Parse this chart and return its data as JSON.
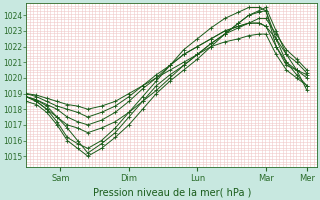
{
  "bg_color": "#c8e8e0",
  "plot_bg": "#ffffff",
  "grid_color": "#f0c8c8",
  "line_color": "#1a5c1a",
  "xlabel": "Pression niveau de la mer( hPa )",
  "ylim": [
    1014.3,
    1024.8
  ],
  "yticks": [
    1015,
    1016,
    1017,
    1018,
    1019,
    1020,
    1021,
    1022,
    1023,
    1024
  ],
  "xlim": [
    0,
    8.5
  ],
  "tick_positions": [
    1.0,
    3.0,
    5.0,
    7.0,
    8.2
  ],
  "tick_labels": [
    "Sam",
    "Dim",
    "Lun",
    "Mar",
    "Mer"
  ],
  "lines": [
    {
      "x": [
        0.0,
        0.3,
        0.6,
        0.9,
        1.2,
        1.5,
        1.8,
        2.2,
        2.6,
        3.0,
        3.4,
        3.8,
        4.2,
        4.6,
        5.0,
        5.4,
        5.8,
        6.2,
        6.5,
        6.8,
        7.0,
        7.3,
        7.6,
        7.9,
        8.2
      ],
      "y": [
        1018.8,
        1018.6,
        1018.2,
        1017.5,
        1016.8,
        1016.0,
        1015.2,
        1015.8,
        1016.5,
        1017.5,
        1018.5,
        1019.5,
        1020.2,
        1020.8,
        1021.5,
        1022.2,
        1022.8,
        1023.5,
        1024.0,
        1024.3,
        1024.5,
        1023.0,
        1021.5,
        1020.5,
        1019.2
      ]
    },
    {
      "x": [
        0.0,
        0.3,
        0.6,
        0.9,
        1.2,
        1.5,
        1.8,
        2.2,
        2.6,
        3.0,
        3.4,
        3.8,
        4.2,
        4.6,
        5.0,
        5.4,
        5.8,
        6.2,
        6.5,
        6.8,
        7.0,
        7.3,
        7.6,
        7.9,
        8.2
      ],
      "y": [
        1018.5,
        1018.3,
        1017.8,
        1017.0,
        1016.0,
        1015.5,
        1015.0,
        1015.5,
        1016.2,
        1017.0,
        1018.0,
        1019.0,
        1019.8,
        1020.5,
        1021.2,
        1022.0,
        1022.8,
        1023.5,
        1024.0,
        1024.2,
        1024.3,
        1022.5,
        1021.0,
        1020.2,
        1019.5
      ]
    },
    {
      "x": [
        0.0,
        0.3,
        0.6,
        0.9,
        1.2,
        1.5,
        1.8,
        2.2,
        2.6,
        3.0,
        3.4,
        3.8,
        4.2,
        4.6,
        5.0,
        5.4,
        5.8,
        6.2,
        6.5,
        6.8,
        7.0,
        7.3,
        7.6,
        7.9,
        8.2
      ],
      "y": [
        1018.8,
        1018.5,
        1018.0,
        1017.5,
        1017.0,
        1016.8,
        1016.5,
        1016.8,
        1017.2,
        1017.8,
        1018.5,
        1019.2,
        1020.0,
        1020.8,
        1021.5,
        1022.2,
        1022.8,
        1023.2,
        1023.5,
        1023.8,
        1023.8,
        1022.8,
        1021.8,
        1021.2,
        1020.5
      ]
    },
    {
      "x": [
        0.0,
        0.3,
        0.6,
        0.9,
        1.2,
        1.5,
        1.8,
        2.2,
        2.6,
        3.0,
        3.4,
        3.8,
        4.2,
        4.6,
        5.0,
        5.4,
        5.8,
        6.2,
        6.5,
        6.8,
        7.0,
        7.3,
        7.6,
        7.9,
        8.2
      ],
      "y": [
        1019.0,
        1018.8,
        1018.5,
        1018.2,
        1018.0,
        1017.8,
        1017.5,
        1017.8,
        1018.2,
        1018.8,
        1019.5,
        1020.2,
        1020.8,
        1021.5,
        1022.0,
        1022.5,
        1023.0,
        1023.3,
        1023.5,
        1023.5,
        1023.3,
        1022.5,
        1021.5,
        1021.0,
        1020.3
      ]
    },
    {
      "x": [
        0.0,
        0.3,
        0.6,
        0.9,
        1.2,
        1.5,
        1.8,
        2.2,
        2.6,
        3.0,
        3.4,
        3.8,
        4.2,
        4.6,
        5.0,
        5.4,
        5.8,
        6.2,
        6.5,
        6.8,
        7.0,
        7.3,
        7.6,
        7.9,
        8.2
      ],
      "y": [
        1018.8,
        1018.5,
        1018.0,
        1017.2,
        1016.2,
        1015.8,
        1015.5,
        1016.0,
        1016.8,
        1017.8,
        1018.8,
        1019.8,
        1020.8,
        1021.8,
        1022.5,
        1023.2,
        1023.8,
        1024.2,
        1024.5,
        1024.5,
        1024.3,
        1022.0,
        1020.8,
        1020.5,
        1020.0
      ]
    },
    {
      "x": [
        0.0,
        0.3,
        0.6,
        0.9,
        1.2,
        1.5,
        1.8,
        2.2,
        2.6,
        3.0,
        3.4,
        3.8,
        4.2,
        4.6,
        5.0,
        5.4,
        5.8,
        6.2,
        6.5,
        6.8,
        7.0,
        7.3,
        7.6,
        7.9,
        8.2
      ],
      "y": [
        1018.8,
        1018.6,
        1018.3,
        1018.0,
        1017.5,
        1017.2,
        1017.0,
        1017.3,
        1017.8,
        1018.5,
        1019.3,
        1020.0,
        1020.8,
        1021.5,
        1022.0,
        1022.5,
        1023.0,
        1023.3,
        1023.5,
        1023.5,
        1023.3,
        1022.0,
        1021.0,
        1020.5,
        1020.2
      ]
    },
    {
      "x": [
        0.0,
        0.3,
        0.6,
        0.9,
        1.2,
        1.5,
        1.8,
        2.2,
        2.6,
        3.0,
        3.4,
        3.8,
        4.2,
        4.6,
        5.0,
        5.4,
        5.8,
        6.2,
        6.5,
        6.8,
        7.0,
        7.3,
        7.6,
        7.9,
        8.2
      ],
      "y": [
        1019.0,
        1018.9,
        1018.7,
        1018.5,
        1018.3,
        1018.2,
        1018.0,
        1018.2,
        1018.5,
        1019.0,
        1019.5,
        1020.0,
        1020.5,
        1021.0,
        1021.5,
        1022.0,
        1022.3,
        1022.5,
        1022.7,
        1022.8,
        1022.8,
        1021.5,
        1020.5,
        1020.0,
        1019.5
      ]
    }
  ]
}
